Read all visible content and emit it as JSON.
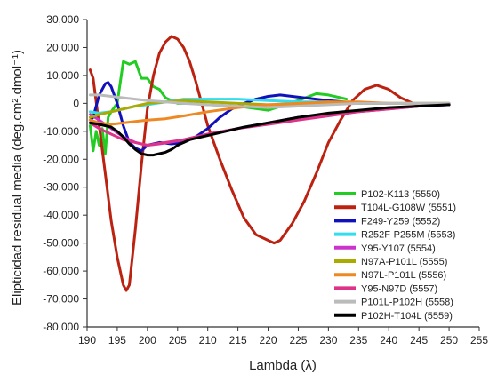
{
  "chart_data": {
    "type": "line",
    "xlabel": "Lambda (λ)",
    "ylabel": "Elipticidad residual media (deg.cm².dmol⁻¹)",
    "xlim": [
      190,
      255
    ],
    "ylim": [
      -80000,
      30000
    ],
    "x_ticks": [
      190,
      195,
      200,
      205,
      210,
      215,
      220,
      225,
      230,
      235,
      240,
      245,
      250,
      255
    ],
    "y_ticks": [
      -80000,
      -70000,
      -60000,
      -50000,
      -40000,
      -30000,
      -20000,
      -10000,
      0,
      10000,
      20000,
      30000
    ],
    "x_tick_labels": [
      "190",
      "195",
      "200",
      "205",
      "210",
      "215",
      "220",
      "225",
      "230",
      "235",
      "240",
      "245",
      "250",
      "255"
    ],
    "y_tick_labels": [
      "-80,000",
      "-70,000",
      "-60,000",
      "-50,000",
      "-40,000",
      "-30,000",
      "-20,000",
      "-10,000",
      "0",
      "10,000",
      "20,000",
      "30,000"
    ],
    "legend_position": "right",
    "grid": false,
    "series": [
      {
        "name": "P102-K113 (5550)",
        "color": "#22cc22",
        "x": [
          190.5,
          191,
          191.5,
          192,
          192.5,
          193,
          193.5,
          194,
          195,
          196,
          197,
          198,
          199,
          200,
          201,
          202,
          203,
          205,
          207,
          210,
          215,
          220,
          225,
          228,
          230,
          233
        ],
        "y": [
          -8000,
          -17000,
          -10000,
          -15000,
          -9000,
          -18000,
          -5000,
          -3000,
          0,
          15000,
          14000,
          15000,
          9000,
          9000,
          6000,
          5000,
          2000,
          0,
          0,
          -500,
          -1000,
          -2500,
          1000,
          3500,
          3000,
          1500
        ]
      },
      {
        "name": "T104L-G108W (5551)",
        "color": "#bb2211",
        "x": [
          190.5,
          191,
          192,
          193,
          194,
          195,
          196,
          196.5,
          197,
          198,
          199,
          200,
          201,
          202,
          203,
          204,
          205,
          206,
          207,
          208,
          209,
          210,
          212,
          214,
          216,
          218,
          220,
          221,
          222,
          224,
          226,
          228,
          230,
          232,
          234,
          236,
          238,
          240,
          242,
          244,
          246,
          248,
          250
        ],
        "y": [
          12000,
          9000,
          -8000,
          -25000,
          -42000,
          -55000,
          -65000,
          -67000,
          -65000,
          -45000,
          -22000,
          -2000,
          10000,
          18000,
          22000,
          24000,
          23000,
          20000,
          15000,
          8000,
          0,
          -8000,
          -20000,
          -31000,
          -41000,
          -47000,
          -49000,
          -50000,
          -49000,
          -43000,
          -35000,
          -25000,
          -14000,
          -6000,
          1000,
          5000,
          6500,
          5000,
          2000,
          0,
          -500,
          -500,
          0
        ]
      },
      {
        "name": "F249-Y259 (5552)",
        "color": "#1111bb",
        "x": [
          190.5,
          191,
          192,
          193,
          193.5,
          194,
          195,
          196,
          197,
          198,
          199,
          200,
          202,
          204,
          206,
          208,
          210,
          212,
          214,
          216,
          218,
          220,
          222,
          224,
          226,
          230,
          235
        ],
        "y": [
          -6000,
          -5000,
          3000,
          7000,
          7500,
          6000,
          0,
          -8000,
          -14000,
          -16000,
          -17000,
          -15000,
          -14000,
          -14500,
          -14000,
          -12000,
          -9000,
          -5000,
          -2000,
          0,
          1500,
          2500,
          3000,
          2500,
          2000,
          1000,
          0
        ]
      },
      {
        "name": "R252F-P255M (5553)",
        "color": "#33ddee",
        "x": [
          190.5,
          192,
          194,
          196,
          198,
          200,
          203,
          206,
          210,
          215,
          220,
          225,
          230,
          235,
          240,
          245,
          250
        ],
        "y": [
          -3000,
          -3500,
          -3000,
          -2000,
          -1000,
          -500,
          500,
          1500,
          1500,
          1500,
          1000,
          500,
          500,
          0,
          0,
          0,
          0
        ]
      },
      {
        "name": "Y95-Y107 (5554)",
        "color": "#cc33cc",
        "x": [
          190.5,
          192,
          194,
          196,
          198,
          200,
          202,
          205,
          210,
          215,
          220,
          225,
          230,
          235,
          240,
          245,
          250
        ],
        "y": [
          -4000,
          -6000,
          -9000,
          -12000,
          -14000,
          -15000,
          -14500,
          -13500,
          -11000,
          -9000,
          -7000,
          -5000,
          -4000,
          -3000,
          -2000,
          -1000,
          -500
        ]
      },
      {
        "name": "N97A-P101L (5555)",
        "color": "#aaaa00",
        "x": [
          190.5,
          192,
          194,
          196,
          198,
          200,
          203,
          206,
          210,
          215,
          220,
          225,
          230,
          235,
          240,
          245,
          250
        ],
        "y": [
          -5000,
          -4000,
          -3000,
          -2000,
          -1000,
          0,
          500,
          1000,
          500,
          0,
          -500,
          -500,
          0,
          0,
          0,
          0,
          0
        ]
      },
      {
        "name": "N97L-P101L (5556)",
        "color": "#ee8822",
        "x": [
          190.5,
          192,
          194,
          196,
          198,
          200,
          203,
          206,
          210,
          215,
          220,
          225,
          230,
          235,
          240,
          245,
          250
        ],
        "y": [
          -6000,
          -7000,
          -7500,
          -7000,
          -6500,
          -6000,
          -5500,
          -4500,
          -3000,
          -1500,
          -500,
          0,
          500,
          500,
          0,
          0,
          0
        ]
      },
      {
        "name": "Y95-N97D (5557)",
        "color": "#dd3388",
        "x": [
          190.5,
          192,
          194,
          196,
          198,
          200,
          203,
          206,
          210,
          215,
          220,
          225,
          230,
          235,
          240,
          245,
          250
        ],
        "y": [
          -7000,
          -9000,
          -11000,
          -13000,
          -14000,
          -15000,
          -14000,
          -13000,
          -11000,
          -9000,
          -7500,
          -6000,
          -4500,
          -3000,
          -2000,
          -1000,
          -500
        ]
      },
      {
        "name": "P101L-P102H (5558)",
        "color": "#bbbbbb",
        "x": [
          190.5,
          192,
          194,
          196,
          198,
          200,
          203,
          206,
          210,
          215,
          220,
          225,
          230,
          235,
          240,
          245,
          250
        ],
        "y": [
          3000,
          3000,
          2500,
          2000,
          1500,
          1000,
          500,
          0,
          -500,
          -1000,
          -1500,
          -1000,
          -500,
          0,
          0,
          0,
          0
        ]
      },
      {
        "name": "P102H-T104L (5559)",
        "color": "#000000",
        "x": [
          190.5,
          192,
          194,
          195,
          196,
          197,
          198,
          199,
          200,
          201,
          202,
          203,
          204,
          205,
          206,
          207,
          208,
          210,
          213,
          216,
          220,
          225,
          230,
          235,
          240,
          245,
          250
        ],
        "y": [
          -7000,
          -7500,
          -8500,
          -10000,
          -12000,
          -14500,
          -16500,
          -18000,
          -18500,
          -18500,
          -18000,
          -17500,
          -16500,
          -15000,
          -14000,
          -13000,
          -12500,
          -11500,
          -10000,
          -8500,
          -7000,
          -5000,
          -3500,
          -2500,
          -1500,
          -1000,
          -500
        ]
      }
    ]
  }
}
